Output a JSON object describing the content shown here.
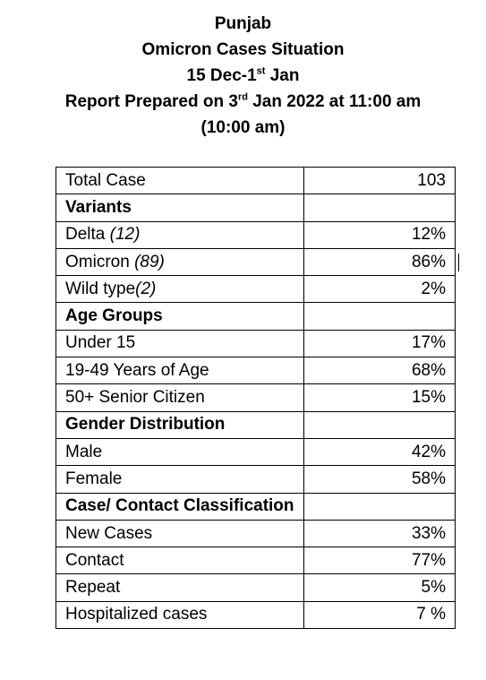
{
  "header": {
    "line1": "Punjab",
    "line2": "Omicron Cases Situation",
    "line3": {
      "pre": "15 Dec-1",
      "sup": "st",
      "post": " Jan"
    },
    "line4": {
      "pre": "Report Prepared on 3",
      "sup": "rd",
      "post": " Jan 2022 at 11:00 am"
    },
    "line5": "(10:00 am)"
  },
  "rows": [
    {
      "label": "Total Case",
      "value": "103"
    },
    {
      "label": "Variants",
      "value": ""
    },
    {
      "label": "Delta ",
      "note": "(12)",
      "value": "12%"
    },
    {
      "label": "Omicron ",
      "note": "(89)",
      "value": "86%"
    },
    {
      "label": "Wild type",
      "note": "(2)",
      "value": "2%"
    },
    {
      "label": "Age Groups",
      "value": ""
    },
    {
      "label": "Under 15",
      "value": "17%"
    },
    {
      "label": "19-49 Years of Age",
      "value": "68%"
    },
    {
      "label": "50+ Senior Citizen",
      "value": "15%"
    },
    {
      "label": "Gender Distribution",
      "value": ""
    },
    {
      "label": "Male",
      "value": "42%"
    },
    {
      "label": "Female",
      "value": "58%"
    },
    {
      "label": "Case/ Contact Classification",
      "value": ""
    },
    {
      "label": "New Cases",
      "value": "33%"
    },
    {
      "label": "Contact",
      "value": "77%"
    },
    {
      "label": "Repeat",
      "value": "5%"
    },
    {
      "label": "Hospitalized cases",
      "value": "7 %"
    }
  ]
}
